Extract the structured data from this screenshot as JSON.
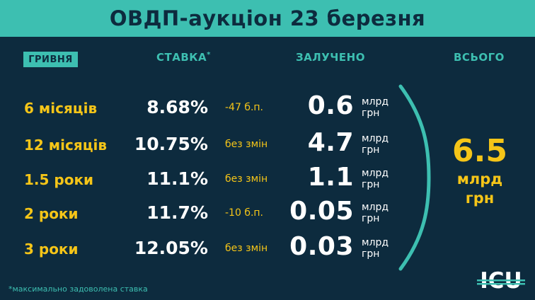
{
  "title": "ОВДП-аукціон 23 березня",
  "headers": {
    "currency": "ГРИВНЯ",
    "rate": "СТАВКА",
    "rate_star": "*",
    "raised": "ЗАЛУЧЕНО",
    "total": "ВСЬОГО"
  },
  "rows": [
    {
      "term": "6 місяців",
      "rate": "8.68%",
      "change": "-47 б.п.",
      "amount": "0.6",
      "unit1": "млрд",
      "unit2": "грн"
    },
    {
      "term": "12 місяців",
      "rate": "10.75%",
      "change": "без змін",
      "amount": "4.7",
      "unit1": "млрд",
      "unit2": "грн"
    },
    {
      "term": "1.5 роки",
      "rate": "11.1%",
      "change": "без змін",
      "amount": "1.1",
      "unit1": "млрд",
      "unit2": "грн"
    },
    {
      "term": "2 роки",
      "rate": "11.7%",
      "change": "-10 б.п.",
      "amount": "0.05",
      "unit1": "млрд",
      "unit2": "грн"
    },
    {
      "term": "3 роки",
      "rate": "12.05%",
      "change": "без змін",
      "amount": "0.03",
      "unit1": "млрд",
      "unit2": "грн"
    }
  ],
  "total": {
    "value": "6.5",
    "unit1": "млрд",
    "unit2": "грн"
  },
  "footnote": "*максимально задоволена ставка",
  "logo_text": "ICU",
  "colors": {
    "background": "#0d2b3e",
    "accent": "#3dbfb1",
    "highlight": "#f5c518",
    "text": "#ffffff"
  }
}
